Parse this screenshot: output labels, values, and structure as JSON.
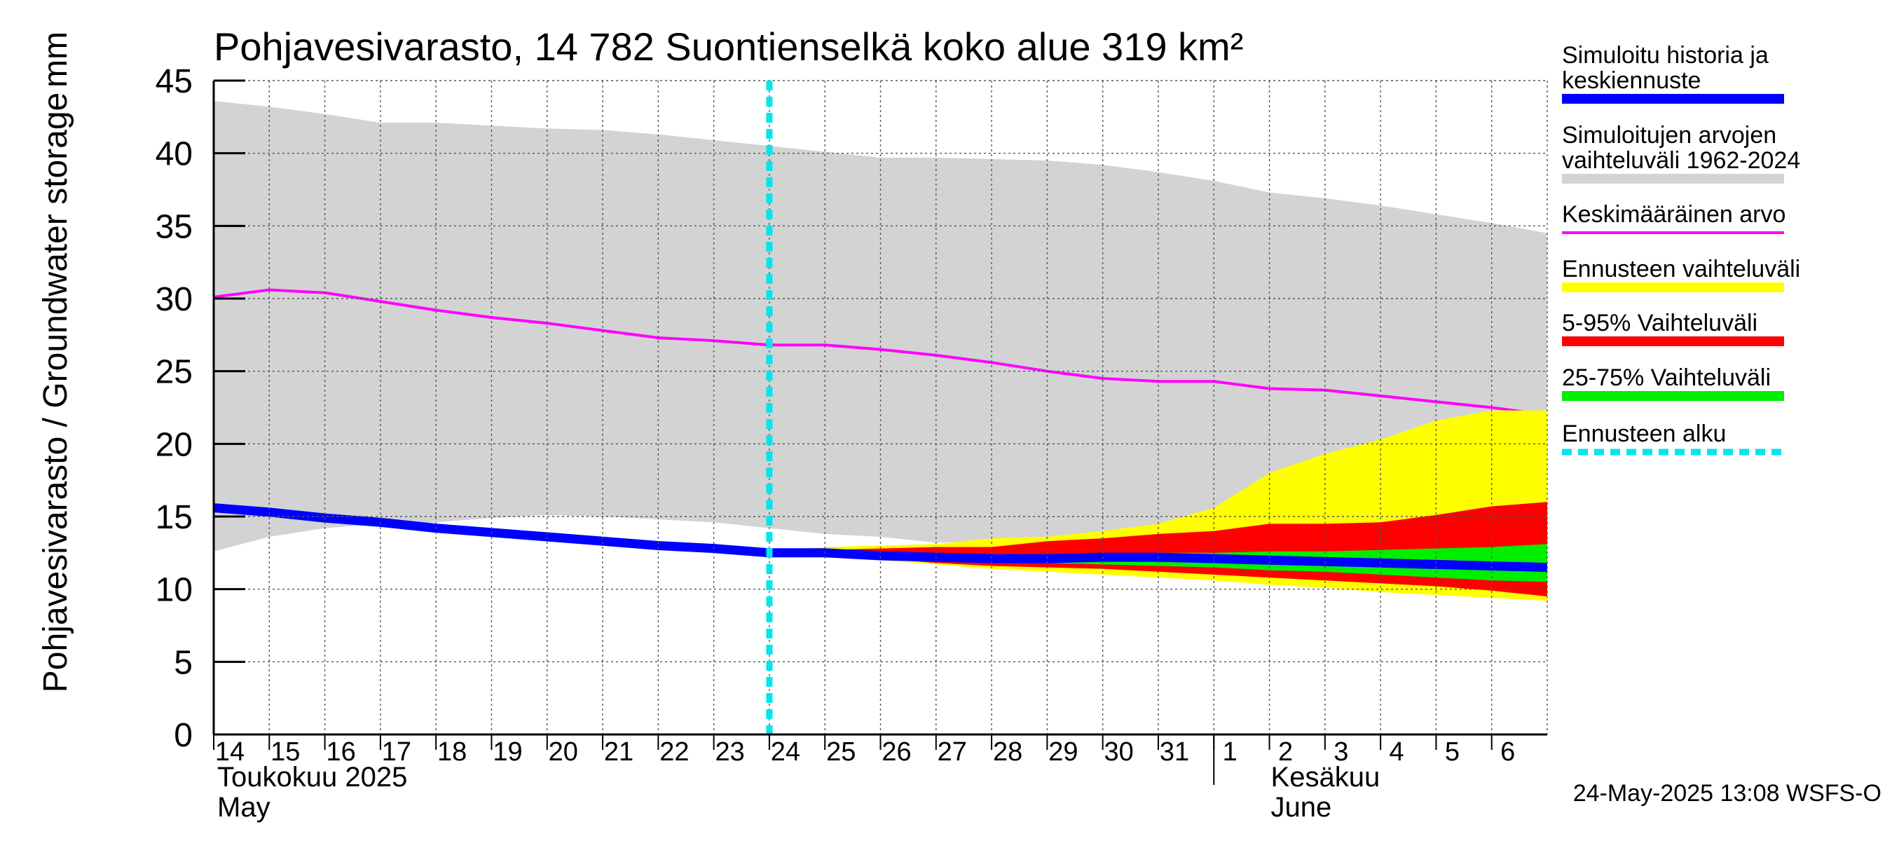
{
  "chart_data": {
    "type": "area",
    "title": "Pohjavesivarasto, 14 782 Suontienselkä koko alue 319 km²",
    "ylabel": "Pohjavesivarasto / Groundwater storage",
    "yunit": "mm",
    "ylim": [
      0,
      45
    ],
    "yticks": [
      0,
      5,
      10,
      15,
      20,
      25,
      30,
      35,
      40,
      45
    ],
    "xlim": [
      "2025-05-14",
      "2025-06-07"
    ],
    "x_tick_labels": [
      "14",
      "15",
      "16",
      "17",
      "18",
      "19",
      "20",
      "21",
      "22",
      "23",
      "24",
      "25",
      "26",
      "27",
      "28",
      "29",
      "30",
      "31",
      "1",
      "2",
      "3",
      "4",
      "5",
      "6"
    ],
    "months": [
      {
        "fi": "Toukokuu  2025",
        "en": "May"
      },
      {
        "fi": "Kesäkuu",
        "en": "June"
      }
    ],
    "grid": true,
    "legend_position": "right",
    "forecast_start": "2025-05-24",
    "series": [
      {
        "name": "Simuloitujen arvojen vaihteluväli 1962-2024",
        "color": "#d3d3d3",
        "x": [
          "2025-05-14",
          "2025-05-15",
          "2025-05-16",
          "2025-05-17",
          "2025-05-18",
          "2025-05-19",
          "2025-05-20",
          "2025-05-21",
          "2025-05-22",
          "2025-05-23",
          "2025-05-24",
          "2025-05-25",
          "2025-05-26",
          "2025-05-27",
          "2025-05-28",
          "2025-05-29",
          "2025-05-30",
          "2025-05-31",
          "2025-06-01",
          "2025-06-02",
          "2025-06-03",
          "2025-06-04",
          "2025-06-05",
          "2025-06-06",
          "2025-06-07"
        ],
        "upper": [
          43.6,
          43.2,
          42.7,
          42.1,
          42.1,
          41.9,
          41.7,
          41.6,
          41.3,
          40.9,
          40.5,
          40.1,
          39.7,
          39.7,
          39.6,
          39.5,
          39.2,
          38.7,
          38.1,
          37.3,
          36.9,
          36.4,
          35.8,
          35.2,
          34.5
        ],
        "lower": [
          12.6,
          13.6,
          14.2,
          14.5,
          14.6,
          14.9,
          15.1,
          15.0,
          14.8,
          14.6,
          14.2,
          13.8,
          13.6,
          13.2,
          13.3,
          13.4,
          13.6,
          13.6,
          13.1,
          12.7,
          12.4,
          12.2,
          11.9,
          11.6,
          11.3
        ]
      },
      {
        "name": "Keskimääräinen arvo",
        "color": "#ff00ff",
        "x": [
          "2025-05-14",
          "2025-05-15",
          "2025-05-16",
          "2025-05-17",
          "2025-05-18",
          "2025-05-19",
          "2025-05-20",
          "2025-05-21",
          "2025-05-22",
          "2025-05-23",
          "2025-05-24",
          "2025-05-25",
          "2025-05-26",
          "2025-05-27",
          "2025-05-28",
          "2025-05-29",
          "2025-05-30",
          "2025-05-31",
          "2025-06-01",
          "2025-06-02",
          "2025-06-03",
          "2025-06-04",
          "2025-06-05",
          "2025-06-06",
          "2025-06-07"
        ],
        "values": [
          30.1,
          30.6,
          30.4,
          29.8,
          29.2,
          28.7,
          28.3,
          27.8,
          27.3,
          27.1,
          26.8,
          26.8,
          26.5,
          26.1,
          25.6,
          25.0,
          24.5,
          24.3,
          24.3,
          23.8,
          23.7,
          23.3,
          22.9,
          22.5,
          22.0
        ]
      },
      {
        "name": "Ennusteen vaihteluväli",
        "color": "#ffff00",
        "x": [
          "2025-05-24",
          "2025-05-25",
          "2025-05-26",
          "2025-05-27",
          "2025-05-28",
          "2025-05-29",
          "2025-05-30",
          "2025-05-31",
          "2025-06-01",
          "2025-06-02",
          "2025-06-03",
          "2025-06-04",
          "2025-06-05",
          "2025-06-06",
          "2025-06-07"
        ],
        "upper": [
          12.6,
          12.9,
          13.0,
          13.1,
          13.5,
          13.6,
          14.0,
          14.5,
          15.6,
          18.0,
          19.3,
          20.3,
          21.6,
          22.3,
          22.3
        ],
        "lower": [
          12.5,
          12.3,
          12.0,
          11.7,
          11.4,
          11.2,
          11.0,
          10.8,
          10.6,
          10.3,
          10.1,
          9.8,
          9.6,
          9.4,
          9.2
        ]
      },
      {
        "name": "5-95% Vaihteluväli",
        "color": "#ff0000",
        "x": [
          "2025-05-24",
          "2025-05-25",
          "2025-05-26",
          "2025-05-27",
          "2025-05-28",
          "2025-05-29",
          "2025-05-30",
          "2025-05-31",
          "2025-06-01",
          "2025-06-02",
          "2025-06-03",
          "2025-06-04",
          "2025-06-05",
          "2025-06-06",
          "2025-06-07"
        ],
        "upper": [
          12.6,
          12.7,
          12.8,
          12.9,
          12.9,
          13.3,
          13.5,
          13.8,
          14.0,
          14.5,
          14.5,
          14.6,
          15.1,
          15.7,
          16.0
        ],
        "lower": [
          12.5,
          12.3,
          12.1,
          11.8,
          11.6,
          11.5,
          11.4,
          11.2,
          11.0,
          10.8,
          10.6,
          10.4,
          10.2,
          9.9,
          9.5
        ]
      },
      {
        "name": "25-75% Vaihteluväli",
        "color": "#00ee00",
        "x": [
          "2025-05-24",
          "2025-05-25",
          "2025-05-26",
          "2025-05-27",
          "2025-05-28",
          "2025-05-29",
          "2025-05-30",
          "2025-05-31",
          "2025-06-01",
          "2025-06-02",
          "2025-06-03",
          "2025-06-04",
          "2025-06-05",
          "2025-06-06",
          "2025-06-07"
        ],
        "upper": [
          12.55,
          12.5,
          12.3,
          12.3,
          12.2,
          12.3,
          12.4,
          12.5,
          12.5,
          12.6,
          12.6,
          12.7,
          12.8,
          12.9,
          13.1
        ],
        "lower": [
          12.45,
          12.3,
          12.1,
          11.9,
          11.8,
          11.8,
          11.7,
          11.6,
          11.5,
          11.3,
          11.2,
          11.0,
          10.8,
          10.6,
          10.5
        ]
      },
      {
        "name": "Simuloitu historia ja keskiennuste",
        "color": "#0000ff",
        "x": [
          "2025-05-14",
          "2025-05-15",
          "2025-05-16",
          "2025-05-17",
          "2025-05-18",
          "2025-05-19",
          "2025-05-20",
          "2025-05-21",
          "2025-05-22",
          "2025-05-23",
          "2025-05-24",
          "2025-05-25",
          "2025-05-26",
          "2025-05-27",
          "2025-05-28",
          "2025-05-29",
          "2025-05-30",
          "2025-05-31",
          "2025-06-01",
          "2025-06-02",
          "2025-06-03",
          "2025-06-04",
          "2025-06-05",
          "2025-06-06",
          "2025-06-07"
        ],
        "values": [
          15.6,
          15.3,
          14.9,
          14.6,
          14.2,
          13.9,
          13.6,
          13.3,
          13.0,
          12.8,
          12.5,
          12.5,
          12.3,
          12.2,
          12.1,
          12.1,
          12.2,
          12.2,
          12.1,
          12.0,
          11.9,
          11.8,
          11.7,
          11.6,
          11.5
        ]
      }
    ],
    "legend": [
      {
        "label": "Simuloitu historia ja keskiennuste",
        "color": "#0000ff",
        "style": "thick"
      },
      {
        "label": "Simuloitujen arvojen vaihteluväli 1962-2024",
        "color": "#d3d3d3",
        "style": "band"
      },
      {
        "label": "Keskimääräinen arvo",
        "color": "#ff00ff",
        "style": "line"
      },
      {
        "label": "Ennusteen vaihteluväli",
        "color": "#ffff00",
        "style": "band"
      },
      {
        "label": "5-95% Vaihteluväli",
        "color": "#ff0000",
        "style": "band"
      },
      {
        "label": "25-75% Vaihteluväli",
        "color": "#00ee00",
        "style": "band"
      },
      {
        "label": "Ennusteen alku",
        "color": "#00e5ee",
        "style": "dashed"
      }
    ]
  },
  "footer": {
    "timestamp": "24-May-2025 13:08 WSFS-O"
  }
}
